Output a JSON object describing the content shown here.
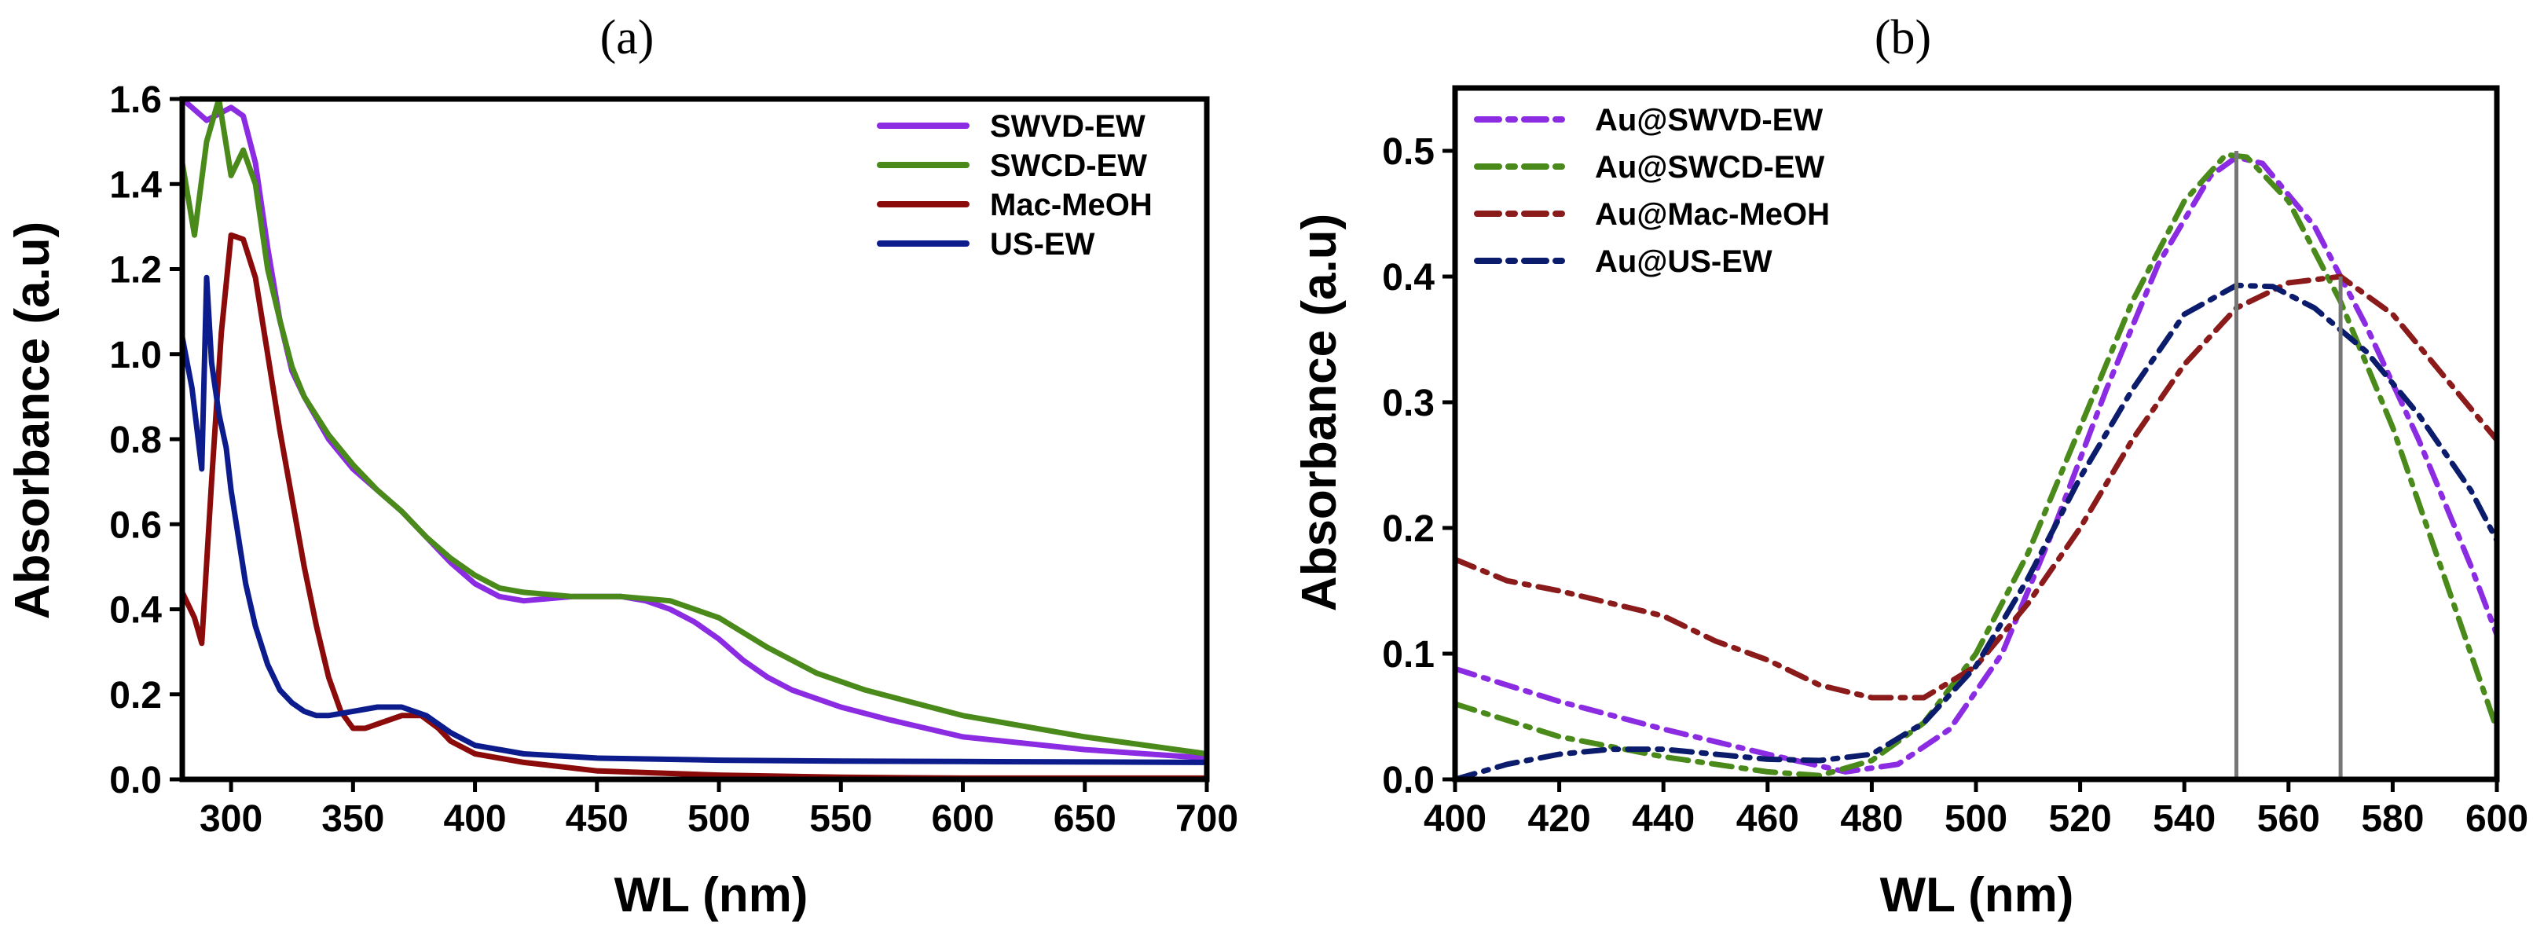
{
  "chart_data": [
    {
      "type": "line",
      "title": "(a)",
      "xlabel": "WL (nm)",
      "ylabel": "Absorbance (a.u)",
      "xlim": [
        280,
        700
      ],
      "ylim": [
        0,
        1.6
      ],
      "xticks": [
        300,
        350,
        400,
        450,
        500,
        550,
        600,
        650,
        700
      ],
      "yticks": [
        0.0,
        0.2,
        0.4,
        0.6,
        0.8,
        1.0,
        1.2,
        1.4,
        1.6
      ],
      "xtick_labels": [
        "300",
        "350",
        "400",
        "450",
        "500",
        "550",
        "600",
        "650",
        "700"
      ],
      "ytick_labels": [
        "0.0",
        "0.2",
        "0.4",
        "0.6",
        "0.8",
        "1.0",
        "1.2",
        "1.4",
        "1.6"
      ],
      "legend_position": "top-right",
      "series": [
        {
          "name": "SWVD-EW",
          "color": "#8B2BE2",
          "style": "solid",
          "points": [
            [
              280,
              1.6
            ],
            [
              290,
              1.55
            ],
            [
              300,
              1.58
            ],
            [
              305,
              1.56
            ],
            [
              310,
              1.45
            ],
            [
              315,
              1.25
            ],
            [
              320,
              1.08
            ],
            [
              325,
              0.96
            ],
            [
              330,
              0.9
            ],
            [
              340,
              0.8
            ],
            [
              350,
              0.73
            ],
            [
              360,
              0.68
            ],
            [
              370,
              0.63
            ],
            [
              380,
              0.57
            ],
            [
              390,
              0.51
            ],
            [
              400,
              0.46
            ],
            [
              410,
              0.43
            ],
            [
              420,
              0.42
            ],
            [
              440,
              0.43
            ],
            [
              460,
              0.43
            ],
            [
              470,
              0.42
            ],
            [
              480,
              0.4
            ],
            [
              490,
              0.37
            ],
            [
              500,
              0.33
            ],
            [
              510,
              0.28
            ],
            [
              520,
              0.24
            ],
            [
              530,
              0.21
            ],
            [
              550,
              0.17
            ],
            [
              570,
              0.14
            ],
            [
              600,
              0.1
            ],
            [
              650,
              0.07
            ],
            [
              700,
              0.05
            ]
          ]
        },
        {
          "name": "SWCD-EW",
          "color": "#4A8A1A",
          "style": "solid",
          "points": [
            [
              280,
              1.45
            ],
            [
              285,
              1.28
            ],
            [
              290,
              1.5
            ],
            [
              295,
              1.6
            ],
            [
              300,
              1.42
            ],
            [
              305,
              1.48
            ],
            [
              310,
              1.4
            ],
            [
              315,
              1.2
            ],
            [
              320,
              1.08
            ],
            [
              325,
              0.97
            ],
            [
              330,
              0.9
            ],
            [
              340,
              0.81
            ],
            [
              350,
              0.74
            ],
            [
              360,
              0.68
            ],
            [
              370,
              0.63
            ],
            [
              380,
              0.57
            ],
            [
              390,
              0.52
            ],
            [
              400,
              0.48
            ],
            [
              410,
              0.45
            ],
            [
              420,
              0.44
            ],
            [
              440,
              0.43
            ],
            [
              460,
              0.43
            ],
            [
              480,
              0.42
            ],
            [
              500,
              0.38
            ],
            [
              520,
              0.31
            ],
            [
              540,
              0.25
            ],
            [
              560,
              0.21
            ],
            [
              580,
              0.18
            ],
            [
              600,
              0.15
            ],
            [
              650,
              0.1
            ],
            [
              700,
              0.06
            ]
          ]
        },
        {
          "name": "Mac-MeOH",
          "color": "#8B0A0A",
          "style": "solid",
          "points": [
            [
              280,
              0.44
            ],
            [
              285,
              0.38
            ],
            [
              288,
              0.32
            ],
            [
              292,
              0.7
            ],
            [
              296,
              1.05
            ],
            [
              300,
              1.28
            ],
            [
              305,
              1.27
            ],
            [
              310,
              1.18
            ],
            [
              315,
              1.0
            ],
            [
              320,
              0.82
            ],
            [
              325,
              0.66
            ],
            [
              330,
              0.5
            ],
            [
              335,
              0.36
            ],
            [
              340,
              0.24
            ],
            [
              345,
              0.16
            ],
            [
              350,
              0.12
            ],
            [
              355,
              0.12
            ],
            [
              360,
              0.13
            ],
            [
              370,
              0.15
            ],
            [
              378,
              0.15
            ],
            [
              385,
              0.12
            ],
            [
              390,
              0.09
            ],
            [
              400,
              0.06
            ],
            [
              420,
              0.04
            ],
            [
              450,
              0.02
            ],
            [
              500,
              0.01
            ],
            [
              550,
              0.005
            ],
            [
              600,
              0.003
            ],
            [
              700,
              0.003
            ]
          ]
        },
        {
          "name": "US-EW",
          "color": "#0C1C8C",
          "style": "solid",
          "points": [
            [
              280,
              1.04
            ],
            [
              284,
              0.92
            ],
            [
              288,
              0.73
            ],
            [
              290,
              1.18
            ],
            [
              292,
              0.98
            ],
            [
              295,
              0.86
            ],
            [
              298,
              0.78
            ],
            [
              300,
              0.68
            ],
            [
              303,
              0.57
            ],
            [
              306,
              0.46
            ],
            [
              310,
              0.36
            ],
            [
              315,
              0.27
            ],
            [
              320,
              0.21
            ],
            [
              325,
              0.18
            ],
            [
              330,
              0.16
            ],
            [
              335,
              0.15
            ],
            [
              340,
              0.15
            ],
            [
              350,
              0.16
            ],
            [
              360,
              0.17
            ],
            [
              370,
              0.17
            ],
            [
              380,
              0.15
            ],
            [
              390,
              0.11
            ],
            [
              400,
              0.08
            ],
            [
              420,
              0.06
            ],
            [
              450,
              0.05
            ],
            [
              500,
              0.045
            ],
            [
              550,
              0.043
            ],
            [
              600,
              0.042
            ],
            [
              700,
              0.04
            ]
          ]
        }
      ]
    },
    {
      "type": "line",
      "title": "(b)",
      "xlabel": "WL (nm)",
      "ylabel": "Absorbance (a.u)",
      "xlim": [
        400,
        600
      ],
      "ylim": [
        0,
        0.55
      ],
      "xticks": [
        400,
        420,
        440,
        460,
        480,
        500,
        520,
        540,
        560,
        580,
        600
      ],
      "yticks": [
        0.0,
        0.1,
        0.2,
        0.3,
        0.4,
        0.5
      ],
      "xtick_labels": [
        "400",
        "420",
        "440",
        "460",
        "480",
        "500",
        "520",
        "540",
        "560",
        "580",
        "600"
      ],
      "ytick_labels": [
        "0.0",
        "0.1",
        "0.2",
        "0.3",
        "0.4",
        "0.5"
      ],
      "legend_position": "top-left",
      "markers": [
        {
          "x": 550,
          "y": 0.5
        },
        {
          "x": 570,
          "y": 0.4
        }
      ],
      "series": [
        {
          "name": "Au@SWVD-EW",
          "color": "#8B2BE2",
          "style": "dashdot",
          "points": [
            [
              400,
              0.088
            ],
            [
              420,
              0.062
            ],
            [
              440,
              0.04
            ],
            [
              460,
              0.02
            ],
            [
              475,
              0.006
            ],
            [
              485,
              0.012
            ],
            [
              495,
              0.04
            ],
            [
              505,
              0.1
            ],
            [
              515,
              0.2
            ],
            [
              525,
              0.31
            ],
            [
              535,
              0.41
            ],
            [
              545,
              0.48
            ],
            [
              550,
              0.495
            ],
            [
              555,
              0.49
            ],
            [
              565,
              0.44
            ],
            [
              575,
              0.36
            ],
            [
              585,
              0.27
            ],
            [
              595,
              0.17
            ],
            [
              600,
              0.115
            ]
          ]
        },
        {
          "name": "Au@SWCD-EW",
          "color": "#4A8A1A",
          "style": "dashdot",
          "points": [
            [
              400,
              0.06
            ],
            [
              420,
              0.034
            ],
            [
              440,
              0.018
            ],
            [
              460,
              0.006
            ],
            [
              470,
              0.003
            ],
            [
              480,
              0.015
            ],
            [
              490,
              0.045
            ],
            [
              500,
              0.1
            ],
            [
              510,
              0.18
            ],
            [
              520,
              0.28
            ],
            [
              530,
              0.38
            ],
            [
              540,
              0.46
            ],
            [
              548,
              0.497
            ],
            [
              552,
              0.495
            ],
            [
              560,
              0.46
            ],
            [
              570,
              0.38
            ],
            [
              580,
              0.28
            ],
            [
              590,
              0.16
            ],
            [
              600,
              0.04
            ]
          ]
        },
        {
          "name": "Au@Mac-MeOH",
          "color": "#8B1A1A",
          "style": "dashdot",
          "points": [
            [
              400,
              0.175
            ],
            [
              410,
              0.158
            ],
            [
              420,
              0.15
            ],
            [
              430,
              0.14
            ],
            [
              440,
              0.13
            ],
            [
              450,
              0.11
            ],
            [
              460,
              0.095
            ],
            [
              470,
              0.075
            ],
            [
              480,
              0.065
            ],
            [
              490,
              0.065
            ],
            [
              500,
              0.09
            ],
            [
              510,
              0.14
            ],
            [
              520,
              0.2
            ],
            [
              530,
              0.27
            ],
            [
              540,
              0.33
            ],
            [
              550,
              0.375
            ],
            [
              560,
              0.395
            ],
            [
              570,
              0.4
            ],
            [
              580,
              0.37
            ],
            [
              590,
              0.32
            ],
            [
              600,
              0.27
            ]
          ]
        },
        {
          "name": "Au@US-EW",
          "color": "#0C1C6C",
          "style": "dashdot",
          "points": [
            [
              400,
              0.0
            ],
            [
              410,
              0.012
            ],
            [
              420,
              0.02
            ],
            [
              430,
              0.024
            ],
            [
              440,
              0.024
            ],
            [
              450,
              0.02
            ],
            [
              460,
              0.016
            ],
            [
              470,
              0.015
            ],
            [
              480,
              0.02
            ],
            [
              490,
              0.045
            ],
            [
              500,
              0.09
            ],
            [
              510,
              0.16
            ],
            [
              520,
              0.24
            ],
            [
              530,
              0.31
            ],
            [
              540,
              0.37
            ],
            [
              550,
              0.393
            ],
            [
              557,
              0.392
            ],
            [
              565,
              0.375
            ],
            [
              575,
              0.34
            ],
            [
              585,
              0.29
            ],
            [
              595,
              0.23
            ],
            [
              600,
              0.19
            ]
          ]
        }
      ]
    }
  ]
}
